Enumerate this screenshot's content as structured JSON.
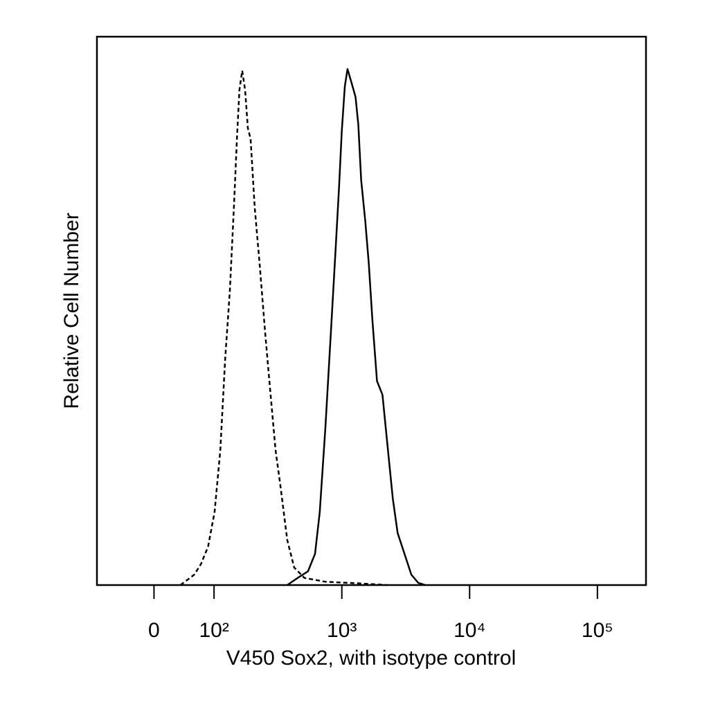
{
  "chart_data": {
    "type": "line",
    "x_label": "V450 Sox2, with isotype control",
    "y_label": "Relative Cell Number",
    "xscale": "biexponential",
    "xlim": [
      -95,
      240000
    ],
    "ylim": [
      0,
      100
    ],
    "xticks": [
      0,
      {
        "value": 100,
        "label": "10²"
      },
      {
        "value": 1000,
        "label": "10³"
      },
      {
        "value": 10000,
        "label": "10⁴"
      },
      {
        "value": 100000,
        "label": "10⁵"
      }
    ],
    "series": [
      {
        "color": "#000000",
        "style": "dashed",
        "x": [
          44,
          55,
          67,
          78,
          90,
          101,
          112,
          122,
          133,
          143,
          151,
          158,
          166,
          175,
          184,
          193,
          208,
          227,
          251,
          274,
          303,
          330,
          374,
          424,
          510,
          743,
          1384,
          2264
        ],
        "values": [
          0,
          0.9,
          1.9,
          3.8,
          7,
          13.3,
          24.6,
          41,
          53.7,
          68.8,
          81.4,
          90.3,
          93.8,
          90.3,
          83.3,
          81.4,
          68.8,
          58.7,
          46.1,
          36,
          24.6,
          18.3,
          8.2,
          3.2,
          1.3,
          0.6,
          0.3,
          0
        ]
      },
      {
        "color": "#000000",
        "style": "solid",
        "x": [
          374,
          451,
          543,
          617,
          672,
          742,
          821,
          894,
          951,
          999,
          1055,
          1107,
          1190,
          1280,
          1346,
          1416,
          1526,
          1625,
          1731,
          1885,
          2081,
          2266,
          2505,
          2733,
          3092,
          3500,
          3963,
          4486
        ],
        "values": [
          0,
          1.3,
          2.5,
          5.7,
          13.3,
          28.4,
          46.1,
          61.2,
          72.6,
          82.7,
          90.9,
          94.1,
          91.6,
          89,
          84,
          73.9,
          66.3,
          58.7,
          48.6,
          37.2,
          34.7,
          25.9,
          15.8,
          9.5,
          5.7,
          1.9,
          0.4,
          0
        ]
      }
    ]
  }
}
